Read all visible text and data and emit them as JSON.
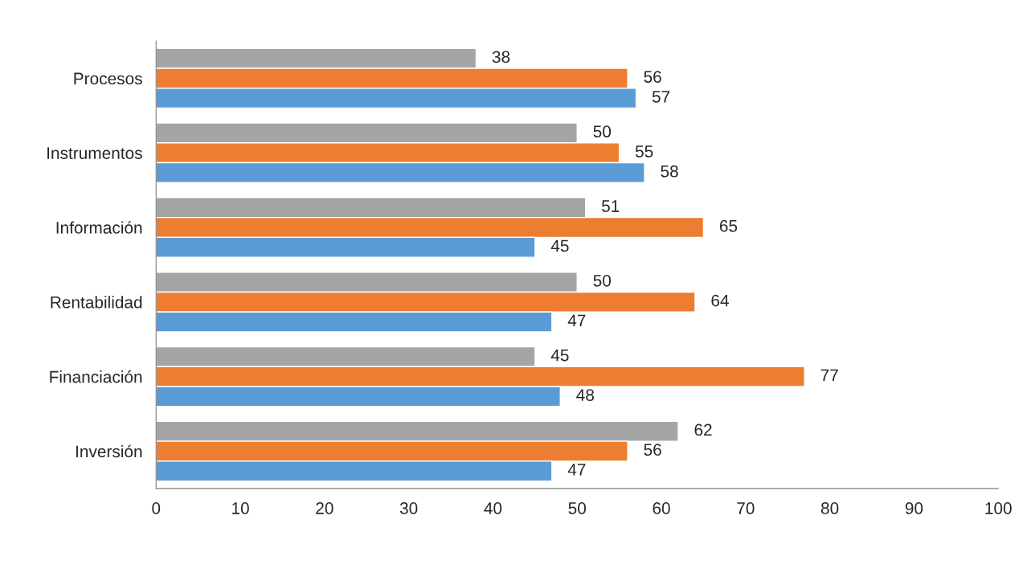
{
  "chart_data": {
    "type": "bar",
    "orientation": "horizontal",
    "categories": [
      "Procesos",
      "Instrumentos",
      "Información",
      "Rentabilidad",
      "Financiación",
      "Inversión"
    ],
    "series": [
      {
        "color": "#a5a5a5",
        "values": [
          38,
          50,
          51,
          50,
          45,
          62
        ]
      },
      {
        "color": "#ed7d31",
        "values": [
          56,
          55,
          65,
          64,
          77,
          56
        ]
      },
      {
        "color": "#5b9bd5",
        "values": [
          57,
          58,
          45,
          47,
          48,
          47
        ]
      }
    ],
    "xlim": [
      0,
      100
    ],
    "xticks": [
      0,
      10,
      20,
      30,
      40,
      50,
      60,
      70,
      80,
      90,
      100
    ],
    "data_labels": true,
    "grid": false,
    "legend": false
  }
}
